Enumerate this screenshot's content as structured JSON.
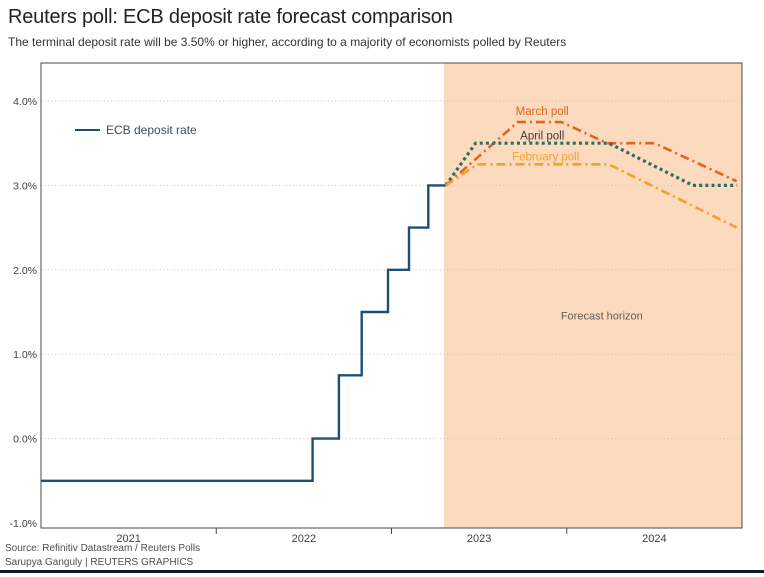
{
  "header": {
    "title": "Reuters poll: ECB deposit rate forecast comparison",
    "subtitle": "The terminal deposit rate will be 3.50% or higher, according to a majority of economists polled by Reuters"
  },
  "legend": {
    "label": "ECB deposit rate",
    "color": "#1d4e76",
    "text_color": "#3f4b5b"
  },
  "footer": {
    "source": "Source: Refinitiv Datastream / Reuters Polls",
    "credit": "Sarupya Ganguly | REUTERS GRAPHICS"
  },
  "colors": {
    "history_line": "#1d4e76",
    "march_poll": "#e2641f",
    "april_poll": "#2f6d5e",
    "february_poll": "#f4a02c",
    "forecast_shading": "#fbdabe",
    "gridline": "#c9c9c9",
    "plot_border": "#4a4a4a",
    "axis_text": "#404040",
    "bottom_rule": "#131c26"
  },
  "chart_data": {
    "type": "line",
    "title": "Reuters poll: ECB deposit rate forecast comparison",
    "subtitle": "The terminal deposit rate will be 3.50% or higher, according to a majority of economists polled by Reuters",
    "x_axis": {
      "range": [
        2021,
        2025
      ],
      "boundary_ticks": [
        2022,
        2023,
        2024
      ],
      "year_labels": [
        {
          "text": "2021",
          "x": 2021.5
        },
        {
          "text": "2022",
          "x": 2022.5
        },
        {
          "text": "2023",
          "x": 2023.5
        },
        {
          "text": "2024",
          "x": 2024.5
        }
      ]
    },
    "y_axis": {
      "unit": "%",
      "ticks": [
        {
          "text": "4.0%",
          "v": 4
        },
        {
          "text": "3.0%",
          "v": 3
        },
        {
          "text": "2.0%",
          "v": 2
        },
        {
          "text": "1.0%",
          "v": 1
        },
        {
          "text": "0.0%",
          "v": 0
        },
        {
          "text": "-1.0%",
          "v": -1
        }
      ],
      "gridline_values": [
        4,
        3,
        2,
        1,
        0
      ],
      "range": [
        -1,
        4.45
      ]
    },
    "forecast_region": {
      "start": 2023.3,
      "end": 2025,
      "fill": "#fbdabe",
      "label": {
        "text": "Forecast horizon",
        "x": 2024.2,
        "v": 1.46,
        "color": "#5f5f5f"
      }
    },
    "series": [
      {
        "name": "ECB deposit rate",
        "color": "#1d4e76",
        "style": "solid",
        "width": 2.4,
        "points": [
          [
            2021.0,
            -0.5
          ],
          [
            2022.55,
            -0.5
          ],
          [
            2022.55,
            0.0
          ],
          [
            2022.7,
            0.0
          ],
          [
            2022.7,
            0.75
          ],
          [
            2022.83,
            0.75
          ],
          [
            2022.83,
            1.5
          ],
          [
            2022.98,
            1.5
          ],
          [
            2022.98,
            2.0
          ],
          [
            2023.1,
            2.0
          ],
          [
            2023.1,
            2.5
          ],
          [
            2023.21,
            2.5
          ],
          [
            2023.21,
            3.0
          ],
          [
            2023.31,
            3.0
          ]
        ]
      },
      {
        "name": "March poll",
        "color": "#e2641f",
        "style": "dashdot",
        "width": 2.6,
        "label": {
          "text": "March poll",
          "x": 2023.86,
          "v": 3.88,
          "color": "#e2641f"
        },
        "points": [
          [
            2023.31,
            3.0
          ],
          [
            2023.72,
            3.75
          ],
          [
            2023.97,
            3.75
          ],
          [
            2024.23,
            3.5
          ],
          [
            2024.5,
            3.5
          ],
          [
            2024.97,
            3.05
          ]
        ]
      },
      {
        "name": "April poll",
        "color": "#2f6d5e",
        "style": "dotted",
        "width": 3.2,
        "label": {
          "text": "April poll",
          "x": 2023.86,
          "v": 3.59,
          "color": "#3d3d3d"
        },
        "points": [
          [
            2023.31,
            3.0
          ],
          [
            2023.48,
            3.5
          ],
          [
            2024.24,
            3.5
          ],
          [
            2024.72,
            3.0
          ],
          [
            2024.97,
            3.0
          ]
        ]
      },
      {
        "name": "February poll",
        "color": "#f4a02c",
        "style": "dashdot",
        "width": 2.6,
        "label": {
          "text": "February poll",
          "x": 2023.88,
          "v": 3.34,
          "color": "#f4a02c"
        },
        "points": [
          [
            2023.31,
            3.0
          ],
          [
            2023.49,
            3.25
          ],
          [
            2024.24,
            3.25
          ],
          [
            2024.97,
            2.5
          ]
        ]
      }
    ],
    "legend": {
      "label": "ECB deposit rate",
      "position": "top-left-inside"
    },
    "source": "Source: Refinitiv Datastream / Reuters Polls",
    "credit": "Sarupya Ganguly | REUTERS GRAPHICS"
  }
}
